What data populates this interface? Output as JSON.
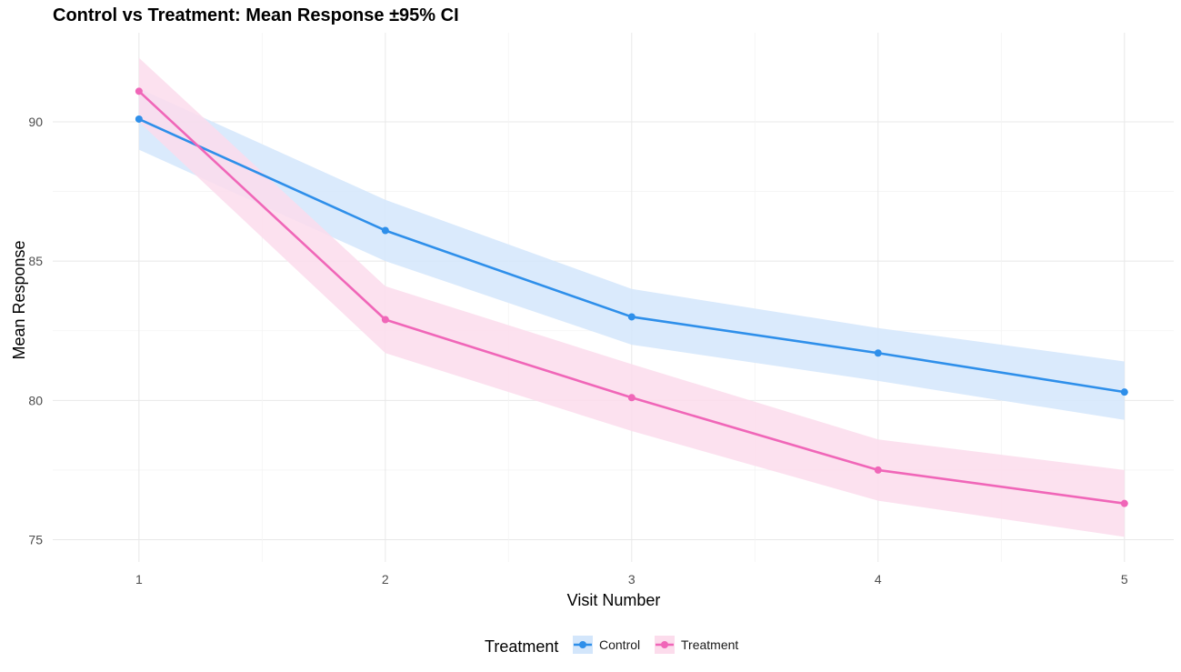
{
  "chart_data": {
    "type": "line",
    "title": "Control vs Treatment: Mean Response ±95% CI",
    "xlabel": "Visit Number",
    "ylabel": "Mean Response",
    "x": [
      1,
      2,
      3,
      4,
      5
    ],
    "x_tick_labels": [
      "1",
      "2",
      "3",
      "4",
      "5"
    ],
    "y_ticks": [
      75,
      80,
      85,
      90
    ],
    "y_tick_labels": [
      "75",
      "80",
      "85",
      "90"
    ],
    "xlim": [
      0.65,
      5.2
    ],
    "ylim": [
      74.2,
      93.2
    ],
    "grid": true,
    "legend": {
      "title": "Treatment",
      "position": "bottom"
    },
    "series": [
      {
        "name": "Control",
        "color": "#2E8FEA",
        "band_color": "#D3E6FB",
        "values": [
          90.1,
          86.1,
          83.0,
          81.7,
          80.3
        ],
        "ci_lower": [
          89.0,
          85.0,
          82.0,
          80.7,
          79.3
        ],
        "ci_upper": [
          91.2,
          87.2,
          84.0,
          82.6,
          81.4
        ]
      },
      {
        "name": "Treatment",
        "color": "#F066B8",
        "band_color": "#FCDCEC",
        "values": [
          91.1,
          82.9,
          80.1,
          77.5,
          76.3
        ],
        "ci_lower": [
          90.0,
          81.7,
          78.9,
          76.4,
          75.1
        ],
        "ci_upper": [
          92.3,
          84.1,
          81.3,
          78.6,
          77.5
        ]
      }
    ]
  }
}
